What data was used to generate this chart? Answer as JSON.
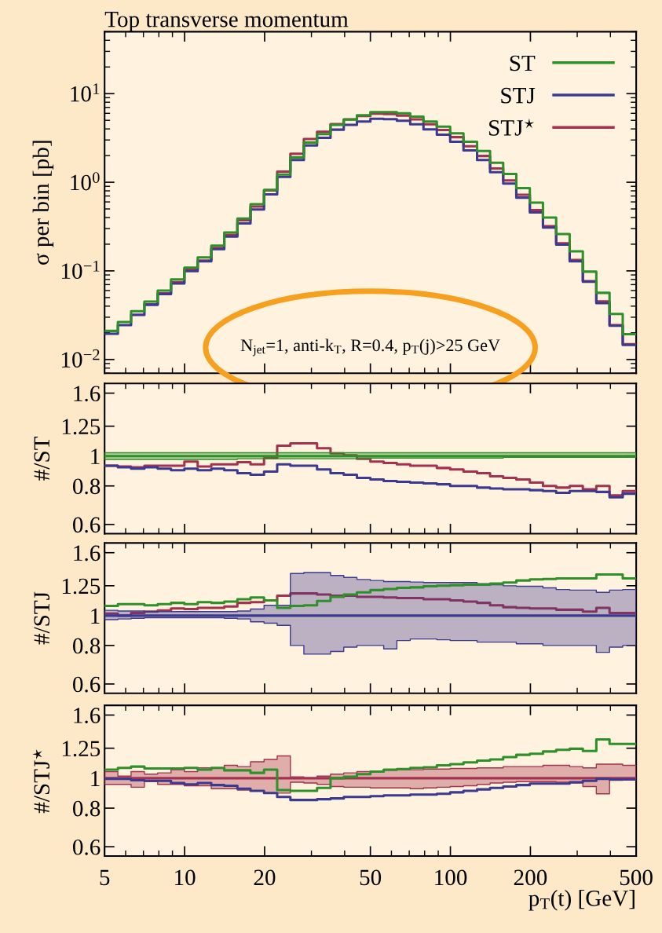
{
  "chart_data": [
    {
      "type": "step",
      "title": "Top transverse momentum",
      "ylabel": "σ per bin [pb]",
      "log": "xy",
      "legend": "top right",
      "tick_labels": "y",
      "annotations": [
        "N$_{jet}$=1, anti-k$_{T}$, R=0.4, p$_{T}$(j)>25 GeV"
      ],
      "x": [
        5,
        5.61,
        6.29,
        7.06,
        7.92,
        8.89,
        9.98,
        11.2,
        12.6,
        14.1,
        15.8,
        17.7,
        19.9,
        22.3,
        25.0,
        28.1,
        31.5,
        35.4,
        39.7,
        44.5,
        50,
        56.1,
        62.9,
        70.6,
        79.2,
        88.9,
        99.8,
        112,
        126,
        141,
        158,
        177,
        199,
        223,
        250,
        281,
        315,
        354,
        397,
        445,
        500
      ],
      "xlim": [
        5,
        500
      ],
      "xticks": [
        5,
        10,
        20,
        50,
        100,
        200,
        500
      ],
      "ylim": [
        0.007,
        50
      ],
      "yticks": [
        {
          "value": 0.01,
          "label": "10$^{−2}$"
        },
        {
          "value": 0.1,
          "label": "10$^{−1}$"
        },
        {
          "value": 1,
          "label": "10$^{0}$"
        },
        {
          "value": 10,
          "label": "10$^{1}$"
        }
      ],
      "series": [
        {
          "name": "ST",
          "color": "#2f8f2a",
          "values": [
            0.021,
            0.0265,
            0.035,
            0.045,
            0.06,
            0.08,
            0.109,
            0.142,
            0.193,
            0.271,
            0.39,
            0.565,
            0.82,
            1.22,
            1.91,
            2.8,
            3.5,
            4.45,
            5.1,
            5.7,
            6.2,
            6.2,
            6.0,
            5.5,
            4.85,
            4.25,
            3.57,
            2.86,
            2.25,
            1.66,
            1.24,
            0.86,
            0.59,
            0.4,
            0.26,
            0.166,
            0.098,
            0.0565,
            0.0327,
            0.0193,
            0.0193
          ]
        },
        {
          "name": "STJ",
          "color": "#3b3a8e",
          "values": [
            0.0195,
            0.0244,
            0.0319,
            0.0414,
            0.0546,
            0.072,
            0.0992,
            0.128,
            0.176,
            0.244,
            0.343,
            0.492,
            0.73,
            1.15,
            1.78,
            2.6,
            3.17,
            3.92,
            4.44,
            4.85,
            5.2,
            5.15,
            4.95,
            4.51,
            3.95,
            3.44,
            2.86,
            2.29,
            1.78,
            1.3,
            0.967,
            0.671,
            0.457,
            0.308,
            0.198,
            0.128,
            0.0755,
            0.0432,
            0.024,
            0.0146,
            0.0146
          ]
        },
        {
          "name": "STJ$^{⋆}$",
          "color": "#a3324e",
          "values": [
            null,
            null,
            null,
            0.0419,
            0.0558,
            0.0744,
            0.105,
            0.131,
            0.181,
            0.255,
            0.372,
            0.531,
            0.81,
            1.32,
            2.1,
            3.08,
            3.71,
            4.54,
            5.13,
            5.59,
            5.95,
            5.89,
            5.64,
            5.12,
            4.51,
            3.89,
            3.23,
            2.55,
            1.98,
            1.43,
            1.05,
            0.722,
            0.484,
            0.32,
            0.205,
            0.133,
            0.0764,
            0.0452,
            0.0244,
            0.0149,
            0.0149
          ]
        }
      ]
    },
    {
      "type": "step",
      "ylabel": "#/ST",
      "log": "xy",
      "tick_labels": "y",
      "x": [
        5,
        5.61,
        6.29,
        7.06,
        7.92,
        8.89,
        9.98,
        11.2,
        12.6,
        14.1,
        15.8,
        17.7,
        19.9,
        22.3,
        25.0,
        28.1,
        31.5,
        35.4,
        39.7,
        44.5,
        50,
        56.1,
        62.9,
        70.6,
        79.2,
        88.9,
        99.8,
        112,
        126,
        141,
        158,
        177,
        199,
        223,
        250,
        281,
        315,
        354,
        397,
        445,
        500
      ],
      "xlim": [
        5,
        500
      ],
      "xticks": [
        5,
        10,
        20,
        50,
        100,
        200,
        500
      ],
      "ylim": [
        0.56,
        1.72
      ],
      "yticks": [
        0.6,
        0.8,
        1,
        1.25,
        1.6
      ],
      "series": [
        {
          "color": "#2f8f2a",
          "values": [
            1,
            1,
            1,
            1,
            1,
            1,
            1,
            1,
            1,
            1,
            1,
            1,
            1,
            1,
            1,
            1,
            1,
            1,
            1,
            1,
            1,
            1,
            1,
            1,
            1,
            1,
            1,
            1,
            1,
            1,
            1,
            1,
            1,
            1,
            1,
            1,
            1,
            1,
            1,
            1,
            1
          ],
          "lower": [
            0.975,
            0.975,
            0.975,
            0.975,
            0.975,
            0.975,
            0.975,
            0.975,
            0.975,
            0.975,
            0.98,
            0.98,
            0.98,
            0.98,
            0.98,
            0.98,
            0.98,
            0.98,
            0.98,
            0.98,
            0.985,
            0.985,
            0.985,
            0.985,
            0.985,
            0.985,
            0.985,
            0.985,
            0.985,
            0.985,
            0.99,
            0.99,
            0.99,
            0.99,
            0.99,
            0.99,
            0.99,
            0.99,
            0.99,
            0.99,
            0.99
          ],
          "upper": [
            1.025,
            1.025,
            1.025,
            1.025,
            1.025,
            1.025,
            1.025,
            1.025,
            1.025,
            1.025,
            1.025,
            1.025,
            1.025,
            1.025,
            1.025,
            1.025,
            1.025,
            1.025,
            1.025,
            1.025,
            1.025,
            1.025,
            1.025,
            1.025,
            1.025,
            1.025,
            1.025,
            1.025,
            1.025,
            1.025,
            1.025,
            1.025,
            1.025,
            1.025,
            1.025,
            1.025,
            1.025,
            1.025,
            1.025,
            1.025,
            1.025
          ]
        },
        {
          "color": "#3b3a8e",
          "values": [
            0.93,
            0.92,
            0.91,
            0.92,
            0.91,
            0.9,
            0.91,
            0.9,
            0.91,
            0.9,
            0.88,
            0.87,
            0.89,
            0.94,
            0.93,
            0.93,
            0.905,
            0.88,
            0.87,
            0.85,
            0.84,
            0.83,
            0.825,
            0.82,
            0.815,
            0.81,
            0.8,
            0.8,
            0.79,
            0.785,
            0.78,
            0.78,
            0.775,
            0.77,
            0.76,
            0.77,
            0.77,
            0.765,
            0.735,
            0.755,
            0.755
          ]
        },
        {
          "color": "#a3324e",
          "values": [
            0.93,
            0.925,
            0.92,
            0.93,
            0.93,
            0.93,
            0.96,
            0.925,
            0.94,
            0.94,
            0.955,
            0.94,
            0.985,
            1.08,
            1.1,
            1.1,
            1.06,
            1.02,
            1.005,
            0.98,
            0.96,
            0.95,
            0.94,
            0.93,
            0.93,
            0.915,
            0.905,
            0.89,
            0.88,
            0.86,
            0.85,
            0.84,
            0.82,
            0.8,
            0.79,
            0.8,
            0.78,
            0.8,
            0.745,
            0.77,
            0.77
          ]
        }
      ]
    },
    {
      "type": "step",
      "ylabel": "#/STJ",
      "log": "xy",
      "tick_labels": "y",
      "x": [
        5,
        5.61,
        6.29,
        7.06,
        7.92,
        8.89,
        9.98,
        11.2,
        12.6,
        14.1,
        15.8,
        17.7,
        19.9,
        22.3,
        25.0,
        28.1,
        31.5,
        35.4,
        39.7,
        44.5,
        50,
        56.1,
        62.9,
        70.6,
        79.2,
        88.9,
        99.8,
        112,
        126,
        141,
        158,
        177,
        199,
        223,
        250,
        281,
        315,
        354,
        397,
        445,
        500
      ],
      "xlim": [
        5,
        500
      ],
      "xticks": [
        5,
        10,
        20,
        50,
        100,
        200,
        500
      ],
      "ylim": [
        0.56,
        1.72
      ],
      "yticks": [
        0.6,
        0.8,
        1,
        1.25,
        1.6
      ],
      "series": [
        {
          "color": "#2f8f2a",
          "values": [
            1.075,
            1.09,
            1.09,
            1.08,
            1.09,
            1.1,
            1.09,
            1.105,
            1.1,
            1.11,
            1.13,
            1.145,
            1.12,
            1.06,
            1.075,
            1.08,
            1.115,
            1.15,
            1.17,
            1.19,
            1.21,
            1.22,
            1.23,
            1.235,
            1.245,
            1.25,
            1.255,
            1.26,
            1.26,
            1.27,
            1.28,
            1.3,
            1.31,
            1.315,
            1.32,
            1.32,
            1.32,
            1.36,
            1.36,
            1.32,
            1.32
          ]
        },
        {
          "color": "#3b3a8e",
          "values": [
            1,
            1,
            1,
            1,
            1,
            1,
            1,
            1,
            1,
            1,
            1,
            1,
            1,
            1,
            1,
            1,
            1,
            1,
            1,
            1,
            1,
            1,
            1,
            1,
            1,
            1,
            1,
            1,
            1,
            1,
            1,
            1,
            1,
            1,
            1,
            1,
            1,
            1,
            1,
            1,
            1
          ],
          "lower": [
            0.97,
            0.975,
            0.98,
            0.985,
            0.985,
            0.985,
            0.985,
            0.985,
            0.985,
            0.98,
            0.975,
            0.955,
            0.945,
            0.93,
            0.8,
            0.75,
            0.75,
            0.765,
            0.79,
            0.8,
            0.8,
            0.78,
            0.83,
            0.84,
            0.84,
            0.835,
            0.83,
            0.83,
            0.82,
            0.82,
            0.82,
            0.81,
            0.81,
            0.8,
            0.8,
            0.8,
            0.8,
            0.76,
            0.79,
            0.8,
            0.8
          ],
          "upper": [
            1.04,
            1.035,
            1.035,
            1.03,
            1.03,
            1.03,
            1.03,
            1.03,
            1.03,
            1.03,
            1.035,
            1.05,
            1.08,
            1.08,
            1.37,
            1.38,
            1.38,
            1.35,
            1.33,
            1.31,
            1.3,
            1.29,
            1.29,
            1.285,
            1.28,
            1.28,
            1.28,
            1.28,
            1.27,
            1.26,
            1.25,
            1.245,
            1.245,
            1.23,
            1.215,
            1.21,
            1.21,
            1.19,
            1.21,
            1.215,
            1.215
          ]
        },
        {
          "color": "#a3324e",
          "values": [
            1.015,
            1.0,
            1.02,
            1.03,
            1.04,
            1.055,
            1.05,
            1.06,
            1.06,
            1.07,
            1.1,
            1.105,
            1.12,
            1.16,
            1.18,
            1.18,
            1.17,
            1.16,
            1.16,
            1.15,
            1.15,
            1.145,
            1.14,
            1.14,
            1.13,
            1.13,
            1.12,
            1.11,
            1.1,
            1.08,
            1.065,
            1.06,
            1.055,
            1.055,
            1.045,
            1.045,
            1.03,
            1.06,
            1.02,
            1.02,
            1.02
          ]
        }
      ]
    },
    {
      "type": "step",
      "ylabel": "#/STJ$^{⋆}$",
      "xlabel": "p$_{T}$(t) [GeV]",
      "log": "xy",
      "x": [
        5,
        5.61,
        6.29,
        7.06,
        7.92,
        8.89,
        9.98,
        11.2,
        12.6,
        14.1,
        15.8,
        17.7,
        19.9,
        22.3,
        25.0,
        28.1,
        31.5,
        35.4,
        39.7,
        44.5,
        50,
        56.1,
        62.9,
        70.6,
        79.2,
        88.9,
        99.8,
        112,
        126,
        141,
        158,
        177,
        199,
        223,
        250,
        281,
        315,
        354,
        397,
        445,
        500
      ],
      "xlim": [
        5,
        500
      ],
      "xticks": [
        5,
        10,
        20,
        50,
        100,
        200,
        500
      ],
      "ylim": [
        0.56,
        1.72
      ],
      "yticks": [
        0.6,
        0.8,
        1,
        1.25,
        1.6
      ],
      "series": [
        {
          "color": "#2f8f2a",
          "values": [
            1.065,
            1.08,
            1.09,
            1.075,
            1.075,
            1.075,
            1.08,
            1.065,
            1.08,
            1.06,
            1.06,
            1.04,
            1.065,
            0.915,
            0.91,
            0.91,
            0.93,
            1.0,
            1.01,
            1.03,
            1.05,
            1.065,
            1.07,
            1.08,
            1.085,
            1.1,
            1.11,
            1.125,
            1.14,
            1.15,
            1.17,
            1.19,
            1.2,
            1.22,
            1.235,
            1.245,
            1.225,
            1.335,
            1.29,
            1.29,
            1.29
          ]
        },
        {
          "color": "#3b3a8e",
          "values": [
            0.995,
            0.995,
            0.985,
            0.98,
            0.98,
            0.965,
            0.955,
            0.965,
            0.95,
            0.945,
            0.925,
            0.91,
            0.895,
            0.87,
            0.85,
            0.85,
            0.855,
            0.86,
            0.87,
            0.87,
            0.875,
            0.88,
            0.88,
            0.885,
            0.885,
            0.89,
            0.9,
            0.91,
            0.92,
            0.93,
            0.94,
            0.95,
            0.96,
            0.96,
            0.96,
            0.97,
            0.98,
            0.995,
            0.99,
            0.99,
            0.99
          ]
        },
        {
          "color": "#a3324e",
          "values": [
            1,
            1,
            1,
            1,
            1,
            1,
            1,
            1,
            1,
            1,
            1,
            1,
            1,
            1,
            1,
            1,
            1,
            1,
            1,
            1,
            1,
            1,
            1,
            1,
            1,
            1,
            1,
            1,
            1,
            1,
            1,
            1,
            1,
            1,
            1,
            1,
            1,
            1,
            1,
            1,
            1
          ],
          "lower": [
            0.955,
            0.955,
            0.935,
            0.975,
            0.955,
            0.955,
            0.945,
            0.945,
            0.925,
            0.925,
            0.915,
            0.91,
            0.895,
            0.895,
            0.97,
            0.965,
            0.955,
            0.94,
            0.935,
            0.935,
            0.93,
            0.93,
            0.93,
            0.925,
            0.93,
            0.935,
            0.94,
            0.945,
            0.955,
            0.965,
            0.97,
            0.975,
            0.975,
            0.975,
            0.97,
            0.965,
            0.94,
            0.89,
            0.985,
            0.99,
            0.99
          ],
          "upper": [
            1.05,
            1.015,
            1.05,
            1.03,
            1.04,
            1.065,
            1.05,
            1.08,
            1.08,
            1.1,
            1.09,
            1.13,
            1.15,
            1.18,
            1.01,
            1.0,
            1.015,
            1.03,
            1.04,
            1.05,
            1.055,
            1.06,
            1.065,
            1.065,
            1.07,
            1.07,
            1.075,
            1.075,
            1.08,
            1.08,
            1.09,
            1.09,
            1.09,
            1.1,
            1.1,
            1.09,
            1.08,
            1.11,
            1.11,
            1.1,
            1.1
          ]
        }
      ]
    }
  ]
}
